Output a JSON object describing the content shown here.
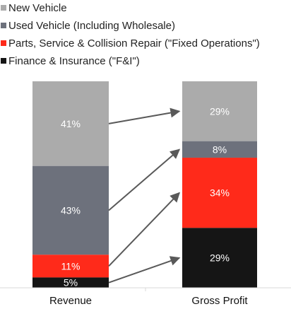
{
  "colors": {
    "new_vehicle": "#ababab",
    "used_vehicle": "#6d717c",
    "fixed_operations": "#ff2a1a",
    "f_and_i": "#151515",
    "arrow": "#595959"
  },
  "chart_data": {
    "type": "bar",
    "stacked": true,
    "percent_stacked": true,
    "categories": [
      "Revenue",
      "Gross Profit"
    ],
    "series": [
      {
        "name": "New Vehicle",
        "values": [
          41,
          29
        ],
        "labels": [
          "41%",
          "29%"
        ]
      },
      {
        "name": "Used Vehicle (Including Wholesale)",
        "values": [
          43,
          8
        ],
        "labels": [
          "43%",
          "8%"
        ]
      },
      {
        "name": "Parts, Service & Collision Repair (\"Fixed Operations\")",
        "values": [
          11,
          34
        ],
        "labels": [
          "11%",
          "34%"
        ]
      },
      {
        "name": "Finance & Insurance (\"F&I\")",
        "values": [
          5,
          29
        ],
        "labels": [
          "5%",
          "29%"
        ]
      }
    ],
    "ylim": [
      0,
      100
    ],
    "grid": false,
    "legend_position": "top-left",
    "arrows": "connect each Revenue segment to its Gross Profit segment"
  }
}
